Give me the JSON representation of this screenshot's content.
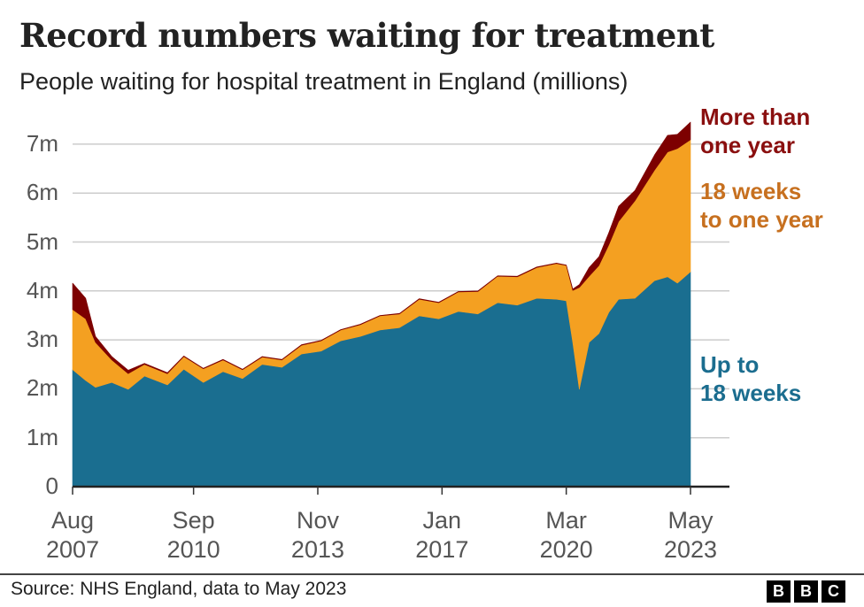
{
  "chart_data": {
    "type": "area",
    "stacked": true,
    "title": "Record numbers waiting for treatment",
    "subtitle": "People waiting for hospital treatment in England (millions)",
    "xlabel": "",
    "ylabel": "",
    "ylim": [
      0,
      7.5
    ],
    "xlim": [
      "2007-08",
      "2023-05"
    ],
    "grid": true,
    "legend_placement": "right (direct labels)",
    "y_ticks": [
      {
        "v": 0,
        "label": "0"
      },
      {
        "v": 1,
        "label": "1m"
      },
      {
        "v": 2,
        "label": "2m"
      },
      {
        "v": 3,
        "label": "3m"
      },
      {
        "v": 4,
        "label": "4m"
      },
      {
        "v": 5,
        "label": "5m"
      },
      {
        "v": 6,
        "label": "6m"
      },
      {
        "v": 7,
        "label": "7m"
      }
    ],
    "x_ticks": [
      {
        "date": "2007-08",
        "month": "Aug",
        "year": "2007"
      },
      {
        "date": "2010-09",
        "month": "Sep",
        "year": "2010"
      },
      {
        "date": "2013-11",
        "month": "Nov",
        "year": "2013"
      },
      {
        "date": "2017-01",
        "month": "Jan",
        "year": "2017"
      },
      {
        "date": "2020-03",
        "month": "Mar",
        "year": "2020"
      },
      {
        "date": "2023-05",
        "month": "May",
        "year": "2023"
      }
    ],
    "x": [
      "2007-08",
      "2007-12",
      "2008-03",
      "2008-08",
      "2009-01",
      "2009-06",
      "2010-01",
      "2010-06",
      "2010-12",
      "2011-06",
      "2011-12",
      "2012-06",
      "2012-12",
      "2013-06",
      "2013-12",
      "2014-06",
      "2014-12",
      "2015-06",
      "2015-12",
      "2016-06",
      "2016-12",
      "2017-06",
      "2017-12",
      "2018-06",
      "2018-12",
      "2019-06",
      "2019-12",
      "2020-03",
      "2020-05",
      "2020-07",
      "2020-10",
      "2021-01",
      "2021-04",
      "2021-07",
      "2021-12",
      "2022-06",
      "2022-10",
      "2023-01",
      "2023-05"
    ],
    "series": [
      {
        "name": "Up to 18 weeks",
        "label_lines": [
          "Up to",
          "18 weeks"
        ],
        "color": "#1a6e90",
        "label_color": "#1b6d8f",
        "values": [
          2.39,
          2.17,
          2.03,
          2.13,
          1.99,
          2.26,
          2.08,
          2.4,
          2.13,
          2.35,
          2.21,
          2.5,
          2.44,
          2.71,
          2.77,
          2.98,
          3.07,
          3.2,
          3.25,
          3.49,
          3.43,
          3.58,
          3.53,
          3.76,
          3.71,
          3.85,
          3.83,
          3.8,
          2.95,
          1.99,
          2.95,
          3.13,
          3.56,
          3.83,
          3.85,
          4.21,
          4.29,
          4.16,
          4.39
        ]
      },
      {
        "name": "18 weeks to one year",
        "label_lines": [
          "18 weeks",
          "to one year"
        ],
        "color": "#f4a021",
        "label_color": "#c7701f",
        "values": [
          1.23,
          1.26,
          0.92,
          0.46,
          0.32,
          0.24,
          0.23,
          0.26,
          0.28,
          0.24,
          0.18,
          0.15,
          0.15,
          0.18,
          0.21,
          0.22,
          0.24,
          0.29,
          0.28,
          0.34,
          0.33,
          0.4,
          0.46,
          0.54,
          0.58,
          0.63,
          0.73,
          0.72,
          1.06,
          2.08,
          1.35,
          1.39,
          1.38,
          1.59,
          1.99,
          2.26,
          2.55,
          2.75,
          2.7
        ]
      },
      {
        "name": "More than one year",
        "label_lines": [
          "More than",
          "one year"
        ],
        "color": "#7d0000",
        "label_color": "#8a0f0f",
        "values": [
          0.54,
          0.42,
          0.12,
          0.07,
          0.07,
          0.02,
          0.02,
          0.01,
          0.01,
          0.01,
          0.01,
          0.01,
          0.01,
          0.01,
          0.01,
          0.01,
          0.01,
          0.01,
          0.01,
          0.01,
          0.01,
          0.01,
          0.01,
          0.01,
          0.01,
          0.01,
          0.01,
          0.01,
          0.03,
          0.06,
          0.18,
          0.18,
          0.25,
          0.31,
          0.21,
          0.31,
          0.34,
          0.29,
          0.36
        ]
      }
    ]
  },
  "footer": {
    "source": "Source: NHS England, data to May 2023",
    "logo_letters": [
      "B",
      "B",
      "C"
    ]
  }
}
